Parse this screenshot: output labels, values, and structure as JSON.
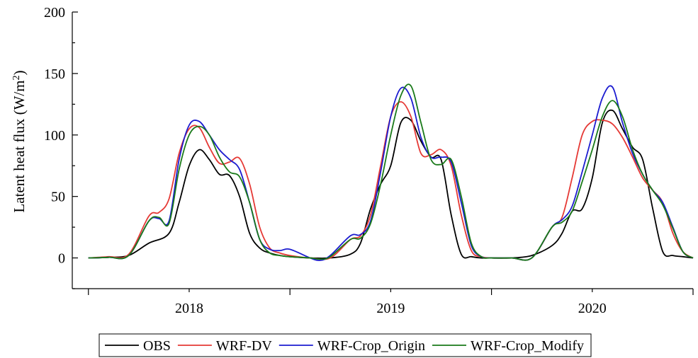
{
  "chart_data": {
    "type": "line",
    "title": "",
    "xlabel": "",
    "ylabel": "Latent heat flux (W/m",
    "ylabel_sup": "2",
    "ylabel_close": ")",
    "ylim": [
      -25,
      200
    ],
    "yticks": [
      0,
      50,
      100,
      150,
      200
    ],
    "xlim": [
      2017.42,
      2020.5
    ],
    "xticks": [
      2018,
      2019,
      2020
    ],
    "xtick_labels": [
      "2018",
      "2019",
      "2020"
    ],
    "grid": false,
    "legend_position": "bottom",
    "series": [
      {
        "name": "OBS",
        "color": "#000000",
        "x": [
          2017.5,
          2017.6,
          2017.7,
          2017.8,
          2017.9,
          2017.95,
          2018.0,
          2018.05,
          2018.1,
          2018.15,
          2018.2,
          2018.25,
          2018.3,
          2018.35,
          2018.4,
          2018.45,
          2018.5,
          2018.6,
          2018.7,
          2018.8,
          2018.85,
          2018.9,
          2018.95,
          2019.0,
          2019.05,
          2019.1,
          2019.15,
          2019.2,
          2019.25,
          2019.3,
          2019.35,
          2019.4,
          2019.45,
          2019.5,
          2019.6,
          2019.7,
          2019.8,
          2019.85,
          2019.9,
          2019.95,
          2020.0,
          2020.05,
          2020.1,
          2020.15,
          2020.2,
          2020.25,
          2020.3,
          2020.35,
          2020.4,
          2020.45,
          2020.5
        ],
        "y": [
          0,
          0.5,
          2,
          12,
          20,
          45,
          75,
          88,
          80,
          68,
          67,
          50,
          20,
          8,
          4,
          2,
          1,
          0,
          0,
          3,
          12,
          40,
          60,
          75,
          110,
          112,
          95,
          82,
          80,
          35,
          3,
          1,
          0,
          0,
          0,
          2,
          10,
          20,
          38,
          40,
          65,
          110,
          120,
          105,
          90,
          80,
          40,
          5,
          2,
          1,
          0
        ]
      },
      {
        "name": "WRF-DV",
        "color": "#e53935",
        "x": [
          2017.5,
          2017.6,
          2017.7,
          2017.8,
          2017.85,
          2017.9,
          2017.95,
          2018.0,
          2018.05,
          2018.1,
          2018.15,
          2018.2,
          2018.25,
          2018.3,
          2018.35,
          2018.4,
          2018.45,
          2018.5,
          2018.6,
          2018.7,
          2018.8,
          2018.85,
          2018.9,
          2018.95,
          2019.0,
          2019.05,
          2019.1,
          2019.15,
          2019.2,
          2019.25,
          2019.3,
          2019.35,
          2019.4,
          2019.45,
          2019.5,
          2019.6,
          2019.7,
          2019.8,
          2019.85,
          2019.9,
          2019.95,
          2020.0,
          2020.05,
          2020.1,
          2020.15,
          2020.2,
          2020.25,
          2020.3,
          2020.35,
          2020.4,
          2020.45,
          2020.5
        ],
        "y": [
          0,
          1,
          3,
          34,
          37,
          48,
          85,
          105,
          106,
          90,
          77,
          78,
          81,
          60,
          25,
          8,
          4,
          2,
          0,
          0,
          15,
          18,
          35,
          75,
          115,
          127,
          115,
          85,
          84,
          88,
          75,
          35,
          6,
          1,
          0,
          0,
          0,
          25,
          33,
          65,
          100,
          111,
          112,
          109,
          98,
          82,
          65,
          55,
          45,
          20,
          5,
          0
        ]
      },
      {
        "name": "WRF-Crop_Origin",
        "color": "#1c1cd0",
        "x": [
          2017.5,
          2017.6,
          2017.7,
          2017.8,
          2017.85,
          2017.9,
          2017.95,
          2018.0,
          2018.05,
          2018.1,
          2018.15,
          2018.2,
          2018.25,
          2018.3,
          2018.35,
          2018.4,
          2018.45,
          2018.5,
          2018.6,
          2018.65,
          2018.7,
          2018.8,
          2018.85,
          2018.9,
          2018.95,
          2019.0,
          2019.05,
          2019.1,
          2019.15,
          2019.2,
          2019.25,
          2019.3,
          2019.35,
          2019.4,
          2019.45,
          2019.5,
          2019.6,
          2019.7,
          2019.8,
          2019.85,
          2019.9,
          2019.95,
          2020.0,
          2020.05,
          2020.1,
          2020.15,
          2020.2,
          2020.25,
          2020.3,
          2020.35,
          2020.4,
          2020.45,
          2020.5
        ],
        "y": [
          0,
          0.5,
          2,
          30,
          32,
          30,
          80,
          108,
          111,
          100,
          88,
          80,
          72,
          45,
          15,
          7,
          6,
          7,
          0,
          -2,
          2,
          18,
          19,
          30,
          70,
          115,
          138,
          130,
          98,
          82,
          82,
          78,
          45,
          10,
          1,
          0,
          0,
          0,
          25,
          31,
          42,
          70,
          100,
          130,
          139,
          110,
          85,
          68,
          55,
          45,
          25,
          5,
          0
        ]
      },
      {
        "name": "WRF-Crop_Modify",
        "color": "#1a7a1a",
        "x": [
          2017.5,
          2017.6,
          2017.7,
          2017.8,
          2017.85,
          2017.9,
          2017.95,
          2018.0,
          2018.05,
          2018.1,
          2018.15,
          2018.2,
          2018.25,
          2018.3,
          2018.35,
          2018.4,
          2018.45,
          2018.5,
          2018.6,
          2018.65,
          2018.7,
          2018.8,
          2018.85,
          2018.9,
          2018.95,
          2019.0,
          2019.05,
          2019.1,
          2019.15,
          2019.2,
          2019.25,
          2019.3,
          2019.35,
          2019.4,
          2019.45,
          2019.5,
          2019.6,
          2019.7,
          2019.8,
          2019.85,
          2019.9,
          2019.95,
          2020.0,
          2020.05,
          2020.1,
          2020.15,
          2020.2,
          2020.25,
          2020.3,
          2020.35,
          2020.4,
          2020.45,
          2020.5
        ],
        "y": [
          0,
          0.5,
          2,
          30,
          33,
          28,
          72,
          100,
          107,
          100,
          82,
          70,
          66,
          45,
          15,
          4,
          2,
          1,
          0,
          -1,
          1,
          15,
          16,
          28,
          60,
          100,
          132,
          140,
          110,
          80,
          76,
          80,
          50,
          12,
          1,
          0,
          0,
          0,
          25,
          29,
          38,
          62,
          88,
          115,
          128,
          115,
          88,
          68,
          55,
          43,
          24,
          5,
          0
        ]
      }
    ]
  }
}
